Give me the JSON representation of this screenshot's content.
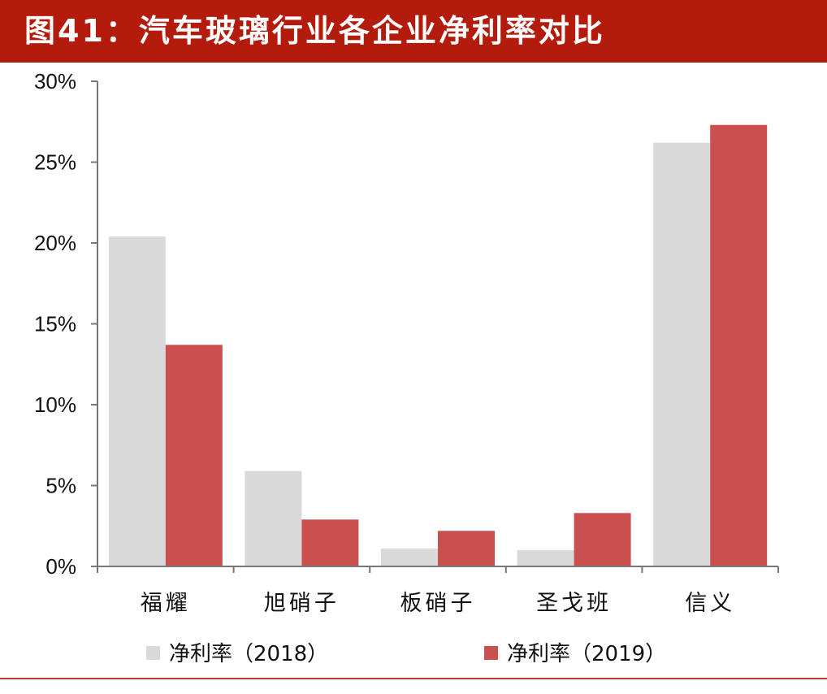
{
  "title": "图41：汽车玻璃行业各企业净利率对比",
  "colors": {
    "title_bg": "#b31b0c",
    "series_2018": "#d9d9d9",
    "series_2019": "#c9504f",
    "axis": "#777777"
  },
  "chart_data": {
    "type": "bar",
    "title": "图41：汽车玻璃行业各企业净利率对比",
    "categories": [
      "福耀",
      "旭硝子",
      "板硝子",
      "圣戈班",
      "信义"
    ],
    "series": [
      {
        "name": "净利率（2018）",
        "values": [
          20.4,
          5.9,
          1.1,
          1.0,
          26.2
        ]
      },
      {
        "name": "净利率（2019）",
        "values": [
          13.7,
          2.9,
          2.2,
          3.3,
          27.3
        ]
      }
    ],
    "ylim": [
      0,
      30
    ],
    "yticks": [
      0,
      5,
      10,
      15,
      20,
      25,
      30
    ],
    "ytick_labels": [
      "0%",
      "5%",
      "10%",
      "15%",
      "20%",
      "25%",
      "30%"
    ],
    "xlabel": "",
    "ylabel": "",
    "grid": false,
    "legend_position": "bottom"
  }
}
